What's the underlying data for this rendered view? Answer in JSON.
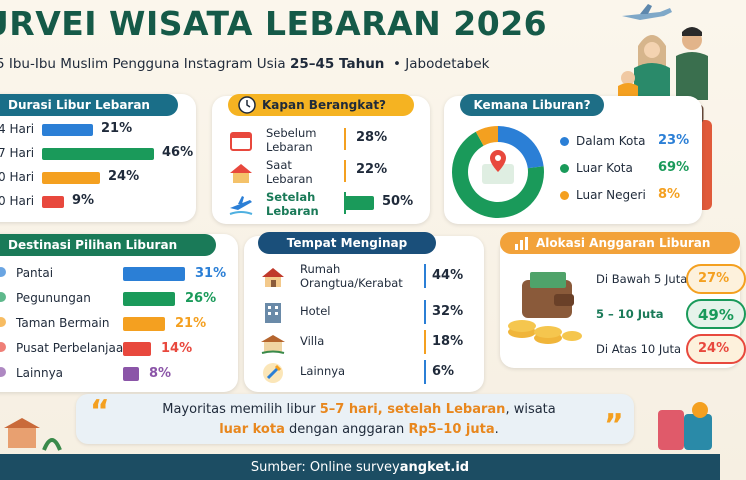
{
  "header": {
    "title": "URVEI WISATA LEBARAN 2026",
    "subtitle_prefix": "5 Ibu-Ibu Muslim Pengguna Instagram Usia ",
    "subtitle_age": "25–45 Tahun",
    "subtitle_region": "• Jabodetabek"
  },
  "colors": {
    "green": "#1a9a5a",
    "blue": "#2b7fd6",
    "orange": "#f4a020",
    "red": "#e8483d",
    "purple": "#8b55a8",
    "navy": "#1c4d63",
    "teal_pill": "#1e6e86"
  },
  "durasi": {
    "title": "Durasi Libur Lebaran",
    "rows": [
      {
        "label": "4 Hari",
        "value": 21,
        "pct": "21%",
        "color": "#2b7fd6"
      },
      {
        "label": "7 Hari",
        "value": 46,
        "pct": "46%",
        "color": "#1a9a5a"
      },
      {
        "label": "0 Hari",
        "value": 24,
        "pct": "24%",
        "color": "#f4a020"
      },
      {
        "label": "0 Hari",
        "value": 9,
        "pct": "9%",
        "color": "#e8483d"
      }
    ]
  },
  "kapan": {
    "title": "Kapan Berangkat?",
    "rows": [
      {
        "label1": "Sebelum",
        "label2": "Lebaran",
        "pct": "28%",
        "color": "#f4a020",
        "icon": "calendar-icon"
      },
      {
        "label1": "Saat",
        "label2": "Lebaran",
        "pct": "22%",
        "color": "#f4a020",
        "icon": "house-icon"
      },
      {
        "label1": "Setelah",
        "label2": "Lebaran",
        "pct": "50%",
        "color": "#1a9a5a",
        "icon": "airplane-icon"
      }
    ]
  },
  "kemana": {
    "title": "Kemana Liburan?",
    "items": [
      {
        "label": "Dalam Kota",
        "value": 23,
        "pct": "23%",
        "color": "#2b7fd6"
      },
      {
        "label": "Luar Kota",
        "value": 69,
        "pct": "69%",
        "color": "#1a9a5a"
      },
      {
        "label": "Luar Negeri",
        "value": 8,
        "pct": "8%",
        "color": "#f4a020"
      }
    ]
  },
  "destinasi": {
    "title": "Destinasi Pilihan Liburan",
    "rows": [
      {
        "label": "Pantai",
        "value": 31,
        "pct": "31%",
        "color": "#2b7fd6"
      },
      {
        "label": "Pegunungan",
        "value": 26,
        "pct": "26%",
        "color": "#1a9a5a"
      },
      {
        "label": "Taman Bermain",
        "value": 21,
        "pct": "21%",
        "color": "#f4a020"
      },
      {
        "label": "Pusat Perbelanjaan",
        "value": 14,
        "pct": "14%",
        "color": "#e8483d"
      },
      {
        "label": "Lainnya",
        "value": 8,
        "pct": "8%",
        "color": "#8b55a8"
      }
    ]
  },
  "tempat": {
    "title": "Tempat Menginap",
    "rows": [
      {
        "label1": "Rumah",
        "label2": "Orangtua/Kerabat",
        "pct": "44%",
        "color": "#2b7fd6",
        "icon": "home-icon"
      },
      {
        "label1": "Hotel",
        "label2": "",
        "pct": "32%",
        "color": "#2b7fd6",
        "icon": "hotel-icon"
      },
      {
        "label1": "Villa",
        "label2": "",
        "pct": "18%",
        "color": "#f4a020",
        "icon": "villa-icon"
      },
      {
        "label1": "Lainnya",
        "label2": "",
        "pct": "6%",
        "color": "#2b7fd6",
        "icon": "pin-icon"
      }
    ]
  },
  "alokasi": {
    "title": "Alokasi Anggaran Liburan",
    "rows": [
      {
        "label": "Di Bawah 5 Juta",
        "pct": "27%",
        "color": "#f4a020",
        "bold": false
      },
      {
        "label": "5 – 10 Juta",
        "pct": "49%",
        "color": "#1a9a5a",
        "bold": true
      },
      {
        "label": "Di Atas 10 Juta",
        "pct": "24%",
        "color": "#e8483d",
        "bold": false
      }
    ]
  },
  "quote": {
    "open_mark": "“",
    "close_mark": "”",
    "t1": "Mayoritas memilih libur ",
    "h1": "5–7 hari, setelah Lebaran",
    "t2": ", wisata",
    "h2": "luar kota",
    "t3": " dengan anggaran ",
    "h3": "Rp5–10 juta",
    "t4": "."
  },
  "footer": {
    "prefix": "Sumber: Online survey ",
    "source": "angket.id"
  }
}
